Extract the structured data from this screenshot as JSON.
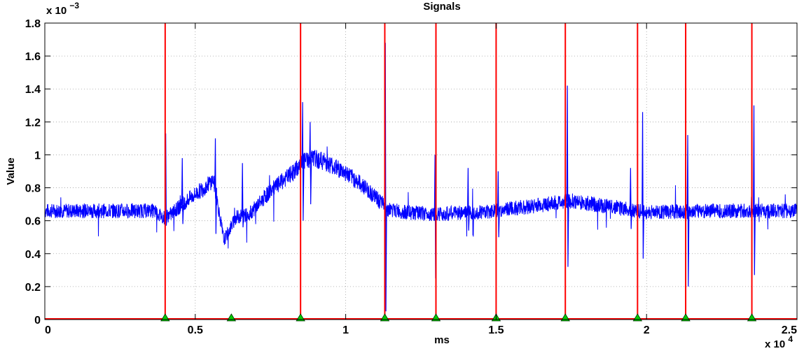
{
  "chart_data": {
    "type": "line",
    "title": "Signals",
    "xlabel": "ms",
    "ylabel": "Value",
    "x_exponent_label": "x 10",
    "x_exponent": "4",
    "y_exponent_label": "x 10",
    "y_exponent": "−3",
    "xlim": [
      0,
      25000
    ],
    "ylim": [
      0,
      0.0018
    ],
    "grid": true,
    "x_ticks": [
      0,
      5000,
      10000,
      15000,
      20000,
      25000
    ],
    "x_tick_labels": [
      "0",
      "0.5",
      "1",
      "1.5",
      "2",
      "2.5"
    ],
    "y_ticks": [
      0,
      0.0002,
      0.0004,
      0.0006,
      0.0008,
      0.001,
      0.0012,
      0.0014,
      0.0016,
      0.0018
    ],
    "y_tick_labels": [
      "0",
      "0.2",
      "0.4",
      "0.6",
      "0.8",
      "1",
      "1.2",
      "1.4",
      "1.6",
      "1.8"
    ],
    "series": [
      {
        "kind": "signal",
        "color": "#0000ff",
        "baseline_x": [
          0,
          3600,
          3950,
          4200,
          4700,
          5300,
          5600,
          5750,
          5950,
          6350,
          6800,
          7500,
          8300,
          8600,
          8900,
          9300,
          10000,
          10600,
          11000,
          11400,
          12000,
          13000,
          15000,
          17500,
          19000,
          20000,
          22000,
          25000
        ],
        "baseline_y": [
          0.00066,
          0.00066,
          0.00062,
          0.00064,
          0.00072,
          0.0008,
          0.00085,
          0.0007,
          0.00048,
          0.00062,
          0.00064,
          0.00078,
          0.0009,
          0.00096,
          0.00098,
          0.00096,
          0.00089,
          0.00081,
          0.00074,
          0.00067,
          0.00065,
          0.00064,
          0.00066,
          0.00072,
          0.00068,
          0.00065,
          0.00066,
          0.00066
        ],
        "spikes": [
          {
            "x": 4000,
            "high": 0.00113,
            "low": 0.00057
          },
          {
            "x": 4550,
            "high": 0.00098,
            "low": 0.00058
          },
          {
            "x": 5650,
            "high": 0.0011,
            "low": 0.00052
          },
          {
            "x": 6550,
            "high": 0.00095,
            "low": 0.00056
          },
          {
            "x": 8550,
            "high": 0.00132,
            "low": 0.0006
          },
          {
            "x": 8800,
            "high": 0.0012,
            "low": 0.0007
          },
          {
            "x": 11300,
            "high": 0.00168,
            "low": 5e-05
          },
          {
            "x": 12950,
            "high": 0.001,
            "low": 0.00025
          },
          {
            "x": 14050,
            "high": 0.00092,
            "low": 0.00054
          },
          {
            "x": 15050,
            "high": 0.0009,
            "low": 0.0005
          },
          {
            "x": 17350,
            "high": 0.00142,
            "low": 0.00032
          },
          {
            "x": 19450,
            "high": 0.00092,
            "low": 0.00055
          },
          {
            "x": 19850,
            "high": 0.00126,
            "low": 0.00037
          },
          {
            "x": 21350,
            "high": 0.00112,
            "low": 0.0002
          },
          {
            "x": 23550,
            "high": 0.0013,
            "low": 0.00027
          }
        ]
      },
      {
        "kind": "vertical_markers",
        "color": "#ff0000",
        "x": [
          4000,
          8500,
          11300,
          13000,
          15000,
          17300,
          19700,
          21300,
          23500
        ]
      },
      {
        "kind": "triangle_markers",
        "color": "#00cc00",
        "x": [
          4000,
          6200,
          8500,
          11300,
          13000,
          15000,
          17300,
          19700,
          21300,
          23500
        ],
        "y": [
          0,
          0,
          0,
          0,
          0,
          0,
          0,
          0,
          0,
          0
        ]
      }
    ]
  }
}
